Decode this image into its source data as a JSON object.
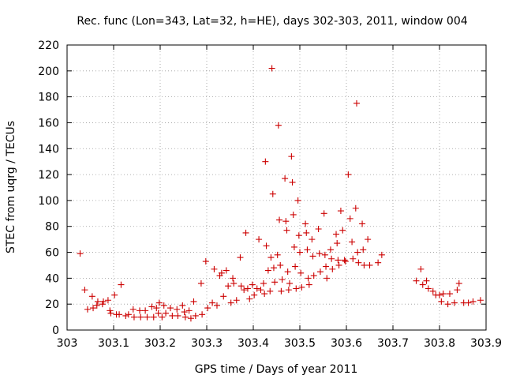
{
  "chart_data": {
    "type": "scatter",
    "title": "Rec. func (Lon=343, Lat=32, h=HE), days 302-303, 2011, window 004",
    "xlabel": "GPS time / Days of year 2011",
    "ylabel": "STEC from uqrg / TECUs",
    "xlim": [
      303,
      303.9
    ],
    "ylim": [
      0,
      220
    ],
    "x_ticks": [
      "303",
      "303.1",
      "303.2",
      "303.3",
      "303.4",
      "303.5",
      "303.6",
      "303.7",
      "303.8",
      "303.9"
    ],
    "y_ticks": [
      "0",
      "20",
      "40",
      "60",
      "80",
      "100",
      "120",
      "140",
      "160",
      "180",
      "200",
      "220"
    ],
    "grid": true,
    "marker": "plus",
    "series_color": "#cc0000",
    "points": [
      [
        303.028,
        59
      ],
      [
        303.038,
        31
      ],
      [
        303.044,
        16
      ],
      [
        303.054,
        26
      ],
      [
        303.056,
        17
      ],
      [
        303.064,
        19
      ],
      [
        303.066,
        22
      ],
      [
        303.076,
        20
      ],
      [
        303.078,
        22
      ],
      [
        303.088,
        23
      ],
      [
        303.092,
        15
      ],
      [
        303.094,
        13
      ],
      [
        303.102,
        27
      ],
      [
        303.106,
        12
      ],
      [
        303.112,
        12
      ],
      [
        303.116,
        35
      ],
      [
        303.126,
        11
      ],
      [
        303.132,
        12
      ],
      [
        303.142,
        16
      ],
      [
        303.144,
        10
      ],
      [
        303.156,
        15
      ],
      [
        303.158,
        10
      ],
      [
        303.168,
        15
      ],
      [
        303.172,
        10
      ],
      [
        303.182,
        18
      ],
      [
        303.186,
        10
      ],
      [
        303.192,
        17
      ],
      [
        303.196,
        13
      ],
      [
        303.198,
        21
      ],
      [
        303.204,
        10
      ],
      [
        303.208,
        19
      ],
      [
        303.212,
        13
      ],
      [
        303.222,
        17
      ],
      [
        303.226,
        11
      ],
      [
        303.236,
        16
      ],
      [
        303.238,
        11
      ],
      [
        303.248,
        19
      ],
      [
        303.252,
        14
      ],
      [
        303.254,
        10
      ],
      [
        303.262,
        15
      ],
      [
        303.266,
        9
      ],
      [
        303.272,
        22
      ],
      [
        303.276,
        11
      ],
      [
        303.288,
        36
      ],
      [
        303.29,
        12
      ],
      [
        303.298,
        53
      ],
      [
        303.302,
        17
      ],
      [
        303.312,
        21
      ],
      [
        303.316,
        47
      ],
      [
        303.322,
        19
      ],
      [
        303.328,
        42
      ],
      [
        303.332,
        44
      ],
      [
        303.336,
        26
      ],
      [
        303.342,
        46
      ],
      [
        303.346,
        34
      ],
      [
        303.352,
        21
      ],
      [
        303.356,
        40
      ],
      [
        303.358,
        36
      ],
      [
        303.364,
        23
      ],
      [
        303.372,
        56
      ],
      [
        303.374,
        34
      ],
      [
        303.38,
        31
      ],
      [
        303.384,
        75
      ],
      [
        303.388,
        32
      ],
      [
        303.392,
        24
      ],
      [
        303.398,
        35
      ],
      [
        303.402,
        27
      ],
      [
        303.408,
        32
      ],
      [
        303.412,
        70
      ],
      [
        303.416,
        31
      ],
      [
        303.422,
        36
      ],
      [
        303.424,
        28
      ],
      [
        303.426,
        130
      ],
      [
        303.428,
        65
      ],
      [
        303.432,
        46
      ],
      [
        303.436,
        30
      ],
      [
        303.438,
        56
      ],
      [
        303.44,
        202
      ],
      [
        303.442,
        105
      ],
      [
        303.444,
        48
      ],
      [
        303.446,
        37
      ],
      [
        303.452,
        58
      ],
      [
        303.454,
        158
      ],
      [
        303.456,
        85
      ],
      [
        303.458,
        50
      ],
      [
        303.46,
        30
      ],
      [
        303.462,
        39
      ],
      [
        303.468,
        117
      ],
      [
        303.47,
        84
      ],
      [
        303.472,
        77
      ],
      [
        303.474,
        45
      ],
      [
        303.476,
        31
      ],
      [
        303.478,
        36
      ],
      [
        303.482,
        134
      ],
      [
        303.484,
        114
      ],
      [
        303.486,
        89
      ],
      [
        303.488,
        64
      ],
      [
        303.49,
        49
      ],
      [
        303.492,
        32
      ],
      [
        303.496,
        100
      ],
      [
        303.498,
        73
      ],
      [
        303.5,
        60
      ],
      [
        303.502,
        44
      ],
      [
        303.504,
        33
      ],
      [
        303.512,
        82
      ],
      [
        303.514,
        75
      ],
      [
        303.516,
        62
      ],
      [
        303.518,
        40
      ],
      [
        303.52,
        35
      ],
      [
        303.526,
        70
      ],
      [
        303.528,
        57
      ],
      [
        303.53,
        42
      ],
      [
        303.54,
        78
      ],
      [
        303.542,
        59
      ],
      [
        303.544,
        45
      ],
      [
        303.552,
        90
      ],
      [
        303.554,
        58
      ],
      [
        303.556,
        49
      ],
      [
        303.558,
        40
      ],
      [
        303.566,
        62
      ],
      [
        303.568,
        55
      ],
      [
        303.57,
        47
      ],
      [
        303.578,
        74
      ],
      [
        303.58,
        67
      ],
      [
        303.582,
        54
      ],
      [
        303.584,
        50
      ],
      [
        303.588,
        92
      ],
      [
        303.592,
        77
      ],
      [
        303.596,
        54
      ],
      [
        303.598,
        53
      ],
      [
        303.604,
        120
      ],
      [
        303.608,
        86
      ],
      [
        303.612,
        68
      ],
      [
        303.614,
        55
      ],
      [
        303.62,
        94
      ],
      [
        303.622,
        175
      ],
      [
        303.624,
        60
      ],
      [
        303.626,
        52
      ],
      [
        303.634,
        82
      ],
      [
        303.636,
        62
      ],
      [
        303.638,
        50
      ],
      [
        303.646,
        70
      ],
      [
        303.65,
        50
      ],
      [
        303.668,
        52
      ],
      [
        303.676,
        58
      ],
      [
        303.75,
        38
      ],
      [
        303.76,
        47
      ],
      [
        303.764,
        35
      ],
      [
        303.772,
        38
      ],
      [
        303.776,
        32
      ],
      [
        303.786,
        30
      ],
      [
        303.792,
        27
      ],
      [
        303.8,
        27
      ],
      [
        303.804,
        22
      ],
      [
        303.808,
        28
      ],
      [
        303.818,
        20
      ],
      [
        303.822,
        28
      ],
      [
        303.832,
        21
      ],
      [
        303.838,
        31
      ],
      [
        303.842,
        36
      ],
      [
        303.852,
        21
      ],
      [
        303.862,
        21
      ],
      [
        303.872,
        22
      ],
      [
        303.888,
        23
      ]
    ]
  }
}
